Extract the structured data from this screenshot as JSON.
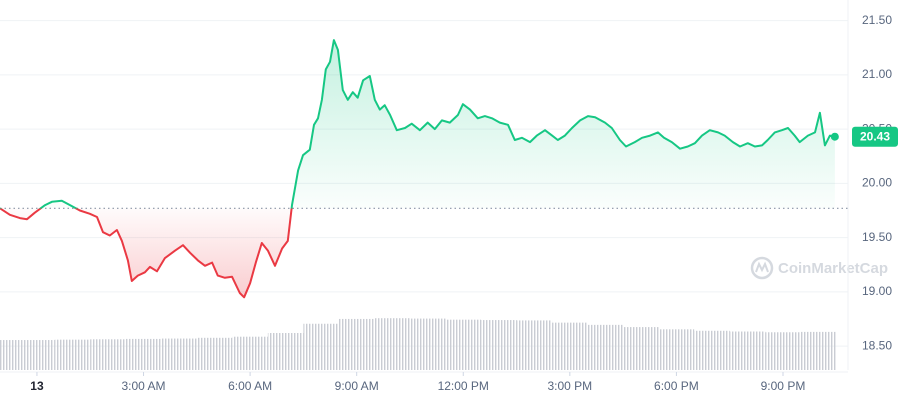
{
  "chart_data": {
    "type": "line",
    "x": [
      -1.04,
      -0.76,
      -0.48,
      -0.28,
      -0.06,
      0.23,
      0.42,
      0.7,
      0.93,
      1.21,
      1.49,
      1.69,
      1.86,
      2.05,
      2.25,
      2.39,
      2.56,
      2.67,
      2.84,
      3.04,
      3.18,
      3.38,
      3.6,
      3.89,
      4.11,
      4.31,
      4.53,
      4.73,
      4.93,
      5.09,
      5.29,
      5.49,
      5.71,
      5.83,
      6.0,
      6.16,
      6.33,
      6.5,
      6.7,
      6.9,
      7.06,
      7.18,
      7.35,
      7.49,
      7.68,
      7.8,
      7.91,
      8.02,
      8.13,
      8.25,
      8.36,
      8.47,
      8.61,
      8.75,
      8.89,
      9.03,
      9.18,
      9.37,
      9.51,
      9.65,
      9.79,
      9.94,
      10.13,
      10.36,
      10.55,
      10.78,
      11.0,
      11.2,
      11.4,
      11.62,
      11.85,
      11.99,
      12.19,
      12.41,
      12.61,
      12.81,
      13.03,
      13.26,
      13.45,
      13.65,
      13.88,
      14.07,
      14.3,
      14.5,
      14.66,
      14.86,
      15.06,
      15.29,
      15.51,
      15.71,
      15.99,
      16.18,
      16.41,
      16.58,
      16.83,
      17.03,
      17.26,
      17.48,
      17.65,
      17.87,
      18.1,
      18.32,
      18.52,
      18.72,
      18.94,
      19.17,
      19.36,
      19.59,
      19.79,
      20.01,
      20.21,
      20.41,
      20.57,
      20.77,
      20.97,
      21.14,
      21.33,
      21.47,
      21.7,
      21.9,
      22.04,
      22.18,
      22.32,
      22.46
    ],
    "values": [
      19.77,
      19.71,
      19.68,
      19.67,
      19.73,
      19.8,
      19.83,
      19.84,
      19.8,
      19.75,
      19.72,
      19.69,
      19.55,
      19.52,
      19.57,
      19.47,
      19.29,
      19.1,
      19.15,
      19.18,
      19.23,
      19.19,
      19.31,
      19.38,
      19.43,
      19.36,
      19.29,
      19.24,
      19.27,
      19.15,
      19.13,
      19.14,
      18.99,
      18.95,
      19.08,
      19.27,
      19.45,
      19.38,
      19.24,
      19.4,
      19.47,
      19.8,
      20.12,
      20.26,
      20.31,
      20.54,
      20.6,
      20.77,
      21.05,
      21.12,
      21.32,
      21.23,
      20.86,
      20.77,
      20.84,
      20.79,
      20.95,
      20.99,
      20.77,
      20.68,
      20.72,
      20.63,
      20.49,
      20.51,
      20.55,
      20.49,
      20.56,
      20.5,
      20.58,
      20.56,
      20.63,
      20.73,
      20.68,
      20.6,
      20.62,
      20.6,
      20.56,
      20.54,
      20.4,
      20.42,
      20.38,
      20.44,
      20.49,
      20.44,
      20.4,
      20.44,
      20.51,
      20.58,
      20.62,
      20.61,
      20.56,
      20.51,
      20.4,
      20.34,
      20.38,
      20.42,
      20.44,
      20.47,
      20.42,
      20.38,
      20.32,
      20.34,
      20.37,
      20.44,
      20.49,
      20.47,
      20.44,
      20.38,
      20.34,
      20.37,
      20.34,
      20.35,
      20.4,
      20.47,
      20.49,
      20.51,
      20.44,
      20.38,
      20.44,
      20.47,
      20.65,
      20.35,
      20.44,
      20.43
    ],
    "baseline": 19.77,
    "colors": {
      "up": "#16c784",
      "down": "#ea3943"
    },
    "xlim": [
      -1.04,
      22.83
    ],
    "ylim": [
      18.28,
      21.69
    ],
    "xticks": [
      {
        "value": 0,
        "label": "13"
      },
      {
        "value": 3,
        "label": "3:00 AM"
      },
      {
        "value": 6,
        "label": "6:00 AM"
      },
      {
        "value": 9,
        "label": "9:00 AM"
      },
      {
        "value": 12,
        "label": "12:00 PM"
      },
      {
        "value": 15,
        "label": "3:00 PM"
      },
      {
        "value": 18,
        "label": "6:00 PM"
      },
      {
        "value": 21,
        "label": "9:00 PM"
      }
    ],
    "yticks": [
      {
        "value": 18.5,
        "label": "18.50"
      },
      {
        "value": 19,
        "label": "19.00"
      },
      {
        "value": 19.5,
        "label": "19.50"
      },
      {
        "value": 20,
        "label": "20.00"
      },
      {
        "value": 20.5,
        "label": "20.50"
      },
      {
        "value": 21,
        "label": "21.00"
      },
      {
        "value": 21.5,
        "label": "21.50"
      }
    ],
    "grid": true,
    "volume": {
      "x": [
        -1,
        0,
        1,
        2,
        3,
        4,
        5,
        6,
        7,
        8,
        9,
        10,
        11,
        12,
        13,
        14,
        15,
        16,
        17,
        18,
        19,
        20,
        21,
        22
      ],
      "values": [
        8.1,
        8.1,
        8.2,
        8.3,
        8.4,
        8.5,
        8.7,
        9.0,
        10.0,
        12.5,
        13.8,
        14.0,
        13.9,
        13.6,
        13.5,
        13.4,
        12.8,
        12.2,
        11.6,
        11.0,
        10.6,
        10.4,
        10.2,
        10.3
      ],
      "lim": [
        0,
        100
      ],
      "color": "#c9ccd3"
    },
    "watermark": "CoinMarketCap"
  }
}
